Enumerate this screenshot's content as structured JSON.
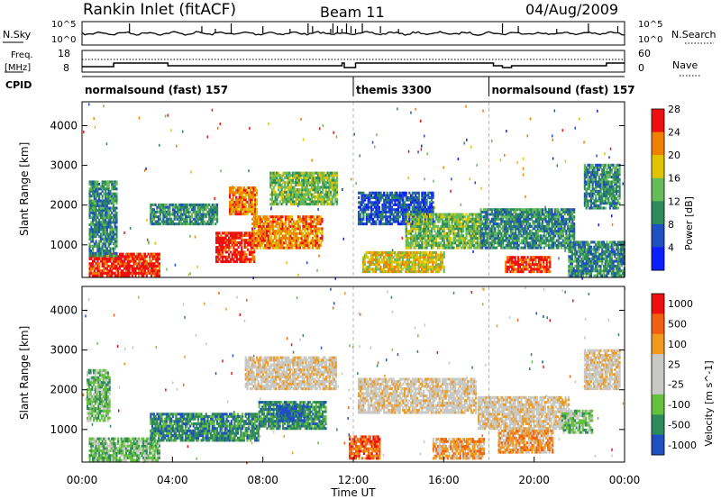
{
  "header": {
    "station": "Rankin Inlet (fitACF)",
    "beam": "Beam 11",
    "date": "04/Aug/2009"
  },
  "top_panels": {
    "nsky_label": "N.Sky",
    "nsearch_label": "N.Search",
    "count_tick_top": "10^5",
    "count_tick_bottom": "10^0",
    "freq_label_line1": "Freq.",
    "freq_label_line2": "[MHz]",
    "freq_ticks": [
      "18",
      "8"
    ],
    "nave_label": "Nave",
    "nave_ticks": [
      "60",
      "0"
    ],
    "cpid_label": "CPID"
  },
  "cpid_segments": [
    {
      "start_h": 0,
      "label": "normalsound (fast) 157"
    },
    {
      "start_h": 12,
      "label": "themis 3300"
    },
    {
      "start_h": 18,
      "label": "normalsound (fast) 157"
    }
  ],
  "chart_data": [
    {
      "type": "heatmap",
      "parameter": "Power",
      "ylabel": "Slant Range [km]",
      "ylim": [
        180,
        4600
      ],
      "yticks": [
        1000,
        2000,
        3000,
        4000
      ],
      "xlim": [
        0,
        24
      ],
      "colorbar_label": "Power [dB]",
      "colorbar_ticks": [
        "4",
        "8",
        "12",
        "16",
        "20",
        "24",
        "28"
      ],
      "colors": [
        "#0a1eff",
        "#1f4fc0",
        "#2e8a5a",
        "#66bb5a",
        "#e0c400",
        "#f08000",
        "#ee1010"
      ],
      "regions": [
        {
          "t0": 0.3,
          "t1": 3.4,
          "r0": 200,
          "r1": 800,
          "level": 6
        },
        {
          "t0": 5.9,
          "t1": 7.6,
          "r0": 550,
          "r1": 1300,
          "level": 6
        },
        {
          "t0": 7.5,
          "t1": 10.6,
          "r0": 900,
          "r1": 1700,
          "level": 5
        },
        {
          "t0": 6.5,
          "t1": 7.7,
          "r0": 1750,
          "r1": 2450,
          "level": 5
        },
        {
          "t0": 0.3,
          "t1": 1.5,
          "r0": 700,
          "r1": 2600,
          "level": 2
        },
        {
          "t0": 3.0,
          "t1": 6.0,
          "r0": 1500,
          "r1": 2000,
          "level": 2
        },
        {
          "t0": 8.3,
          "t1": 11.3,
          "r0": 2000,
          "r1": 2800,
          "level": 3
        },
        {
          "t0": 12.2,
          "t1": 15.5,
          "r0": 1500,
          "r1": 2300,
          "level": 1
        },
        {
          "t0": 14.3,
          "t1": 17.6,
          "r0": 900,
          "r1": 1800,
          "level": 3
        },
        {
          "t0": 17.6,
          "t1": 21.8,
          "r0": 900,
          "r1": 1900,
          "level": 2
        },
        {
          "t0": 18.7,
          "t1": 20.7,
          "r0": 300,
          "r1": 700,
          "level": 6
        },
        {
          "t0": 12.4,
          "t1": 16.0,
          "r0": 300,
          "r1": 800,
          "level": 4
        },
        {
          "t0": 22.2,
          "t1": 23.8,
          "r0": 1900,
          "r1": 3000,
          "level": 2
        },
        {
          "t0": 21.5,
          "t1": 24.0,
          "r0": 200,
          "r1": 1100,
          "level": 2
        }
      ]
    },
    {
      "type": "heatmap",
      "parameter": "Velocity",
      "ylabel": "Slant Range [km]",
      "xlabel": "Time UT",
      "ylim": [
        180,
        4600
      ],
      "yticks": [
        1000,
        2000,
        3000,
        4000
      ],
      "xlim": [
        0,
        24
      ],
      "xticks": [
        "00:00",
        "04:00",
        "08:00",
        "12:00",
        "16:00",
        "20:00",
        "00:00"
      ],
      "colorbar_label": "Velocity [m s^-1]",
      "colorbar_ticks": [
        "1000",
        "500",
        "100",
        "25",
        "-25",
        "-100",
        "-500",
        "-1000"
      ],
      "colors": [
        "#ee1010",
        "#f06010",
        "#f09a20",
        "#c8c8c4",
        "#c8c8c4",
        "#66c040",
        "#2e8a5a",
        "#1f4fc0"
      ],
      "regions": [
        {
          "t0": 0.3,
          "t1": 3.4,
          "r0": 200,
          "r1": 800,
          "level": 5
        },
        {
          "t0": 3.0,
          "t1": 7.8,
          "r0": 700,
          "r1": 1400,
          "level": 6
        },
        {
          "t0": 7.8,
          "t1": 10.8,
          "r0": 1000,
          "r1": 1700,
          "level": 6
        },
        {
          "t0": 8.6,
          "t1": 9.8,
          "r0": 1200,
          "r1": 1600,
          "level": 7
        },
        {
          "t0": 7.2,
          "t1": 11.2,
          "r0": 2000,
          "r1": 2800,
          "level": 3
        },
        {
          "t0": 12.2,
          "t1": 17.4,
          "r0": 1400,
          "r1": 2300,
          "level": 3
        },
        {
          "t0": 15.5,
          "t1": 17.8,
          "r0": 250,
          "r1": 750,
          "level": 2
        },
        {
          "t0": 18.4,
          "t1": 20.8,
          "r0": 400,
          "r1": 1000,
          "level": 2
        },
        {
          "t0": 17.5,
          "t1": 21.5,
          "r0": 1000,
          "r1": 1800,
          "level": 3
        },
        {
          "t0": 21.2,
          "t1": 22.6,
          "r0": 900,
          "r1": 1500,
          "level": 5
        },
        {
          "t0": 22.2,
          "t1": 23.8,
          "r0": 2000,
          "r1": 3000,
          "level": 3
        },
        {
          "t0": 11.8,
          "t1": 13.2,
          "r0": 250,
          "r1": 800,
          "level": 1
        },
        {
          "t0": 0.2,
          "t1": 1.2,
          "r0": 1200,
          "r1": 2500,
          "level": 5
        }
      ]
    }
  ]
}
